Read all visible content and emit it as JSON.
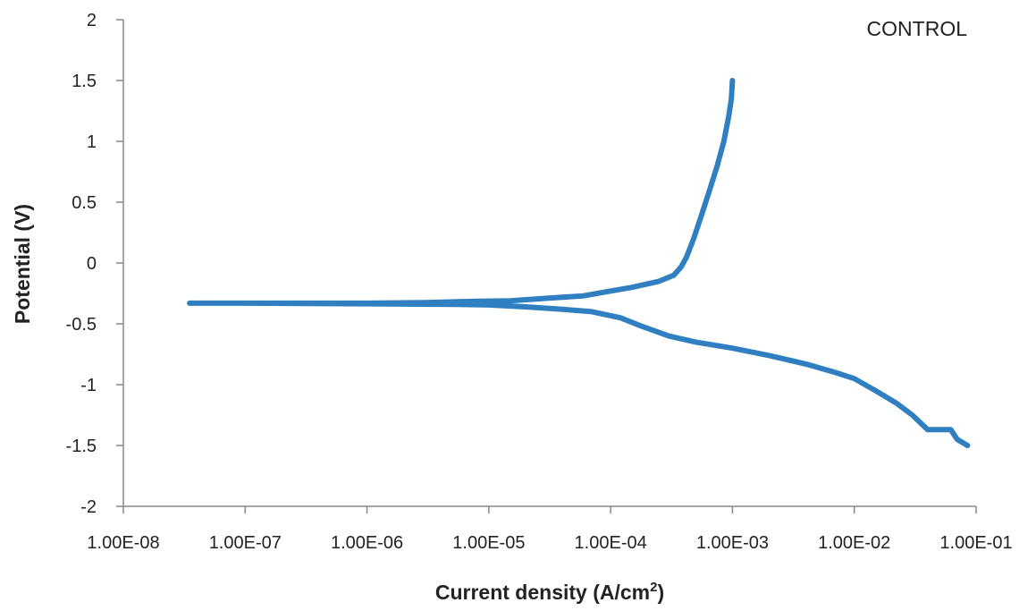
{
  "chart_data": {
    "type": "line",
    "title": "",
    "annotation": "CONTROL",
    "xlabel": "Current density (A/cm",
    "xlabel_sup": "2",
    "xlabel_end": ")",
    "ylabel": "Potential (V)",
    "xscale": "log",
    "xlim": [
      1e-08,
      0.1
    ],
    "ylim": [
      -2,
      2
    ],
    "x_ticks": [
      "1.00E-08",
      "1.00E-07",
      "1.00E-06",
      "1.00E-05",
      "1.00E-04",
      "1.00E-03",
      "1.00E-02",
      "1.00E-01"
    ],
    "y_ticks": [
      "2",
      "1.5",
      "1",
      "0.5",
      "0",
      "-0.5",
      "-1",
      "-1.5",
      "-2"
    ],
    "grid": false,
    "color": "#2f7fc1",
    "series": [
      {
        "points": [
          [
            0.001,
            1.5
          ],
          [
            0.00098,
            1.35
          ],
          [
            0.00093,
            1.2
          ],
          [
            0.00085,
            1.0
          ],
          [
            0.00075,
            0.8
          ],
          [
            0.00065,
            0.6
          ],
          [
            0.00056,
            0.4
          ],
          [
            0.00048,
            0.2
          ],
          [
            0.00042,
            0.05
          ],
          [
            0.00038,
            -0.03
          ],
          [
            0.00033,
            -0.1
          ],
          [
            0.00025,
            -0.15
          ],
          [
            0.00015,
            -0.2
          ],
          [
            0.0001,
            -0.23
          ],
          [
            6e-05,
            -0.27
          ],
          [
            3e-05,
            -0.29
          ],
          [
            1.5e-05,
            -0.31
          ],
          [
            8e-06,
            -0.315
          ],
          [
            3e-06,
            -0.325
          ],
          [
            1e-06,
            -0.33
          ],
          [
            1e-07,
            -0.33
          ],
          [
            3.5e-08,
            -0.33
          ],
          [
            1e-07,
            -0.33
          ],
          [
            1e-06,
            -0.335
          ],
          [
            5e-06,
            -0.34
          ],
          [
            1e-05,
            -0.345
          ],
          [
            2e-05,
            -0.36
          ],
          [
            4e-05,
            -0.38
          ],
          [
            7e-05,
            -0.4
          ],
          [
            0.00012,
            -0.45
          ],
          [
            0.00018,
            -0.52
          ],
          [
            0.0003,
            -0.6
          ],
          [
            0.0005,
            -0.65
          ],
          [
            0.001,
            -0.7
          ],
          [
            0.002,
            -0.76
          ],
          [
            0.004,
            -0.83
          ],
          [
            0.007,
            -0.9
          ],
          [
            0.01,
            -0.95
          ],
          [
            0.015,
            -1.05
          ],
          [
            0.022,
            -1.15
          ],
          [
            0.03,
            -1.25
          ],
          [
            0.04,
            -1.37
          ],
          [
            0.062,
            -1.37
          ],
          [
            0.07,
            -1.45
          ],
          [
            0.085,
            -1.5
          ]
        ]
      }
    ]
  }
}
